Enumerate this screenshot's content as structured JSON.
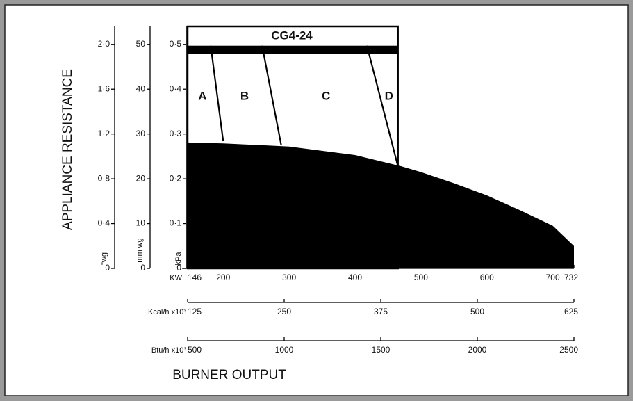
{
  "chart_data": {
    "type": "area",
    "title": "CG4-24",
    "y_label": "APPLIANCE RESISTANCE",
    "x_label": "BURNER OUTPUT",
    "color": "#000000",
    "x": [
      146,
      200,
      300,
      400,
      470,
      500,
      550,
      600,
      650,
      700,
      732
    ],
    "values": [
      0.281,
      0.279,
      0.272,
      0.253,
      0.228,
      0.215,
      0.19,
      0.163,
      0.13,
      0.095,
      0.05
    ],
    "y_axes": [
      {
        "label": "\"wg",
        "ylim": [
          0,
          2.16
        ],
        "yticks": [
          0,
          {
            "value": 0.4,
            "label": "0·4"
          },
          {
            "value": 0.8,
            "label": "0·8"
          },
          {
            "value": 1.2,
            "label": "1·2"
          },
          {
            "value": 1.6,
            "label": "1·6"
          },
          {
            "value": 2.0,
            "label": "2·0"
          }
        ]
      },
      {
        "label": "mm wg",
        "ylim": [
          0,
          54
        ],
        "yticks": [
          0,
          10,
          20,
          30,
          40,
          50
        ]
      },
      {
        "label": "kPa",
        "ylim": [
          0,
          0.54
        ],
        "yticks": [
          0,
          {
            "value": 0.1,
            "label": "0·1"
          },
          {
            "value": 0.2,
            "label": "0·2"
          },
          {
            "value": 0.3,
            "label": "0·3"
          },
          {
            "value": 0.4,
            "label": "0·4"
          },
          {
            "value": 0.5,
            "label": "0·5"
          }
        ]
      }
    ],
    "x_axes": [
      {
        "label": "KW",
        "xlim": [
          146,
          732
        ],
        "xticks": [
          146,
          200,
          300,
          400,
          500,
          600,
          700,
          732
        ]
      },
      {
        "label": "Kcal/h x10³",
        "xlim": [
          125,
          625
        ],
        "xticks": [
          125,
          250,
          375,
          500,
          625
        ]
      },
      {
        "label": "Btu/h x10³",
        "xlim": [
          500,
          2500
        ],
        "xticks": [
          500,
          1000,
          1500,
          2000,
          2500
        ]
      }
    ],
    "range_box": {
      "x": [
        146,
        465
      ],
      "y": [
        0,
        0.54
      ]
    },
    "capacity_bar": {
      "x": [
        146,
        465
      ],
      "y": [
        0.478,
        0.497
      ]
    },
    "zones": [
      "A",
      "B",
      "C",
      "D"
    ],
    "boundaries": [
      {
        "x": [
          181,
          200
        ],
        "y": [
          0.497,
          0.284
        ]
      },
      {
        "x": [
          259,
          288
        ],
        "y": [
          0.497,
          0.275
        ]
      },
      {
        "x": [
          418,
          465
        ],
        "y": [
          0.497,
          0.228
        ]
      }
    ]
  }
}
